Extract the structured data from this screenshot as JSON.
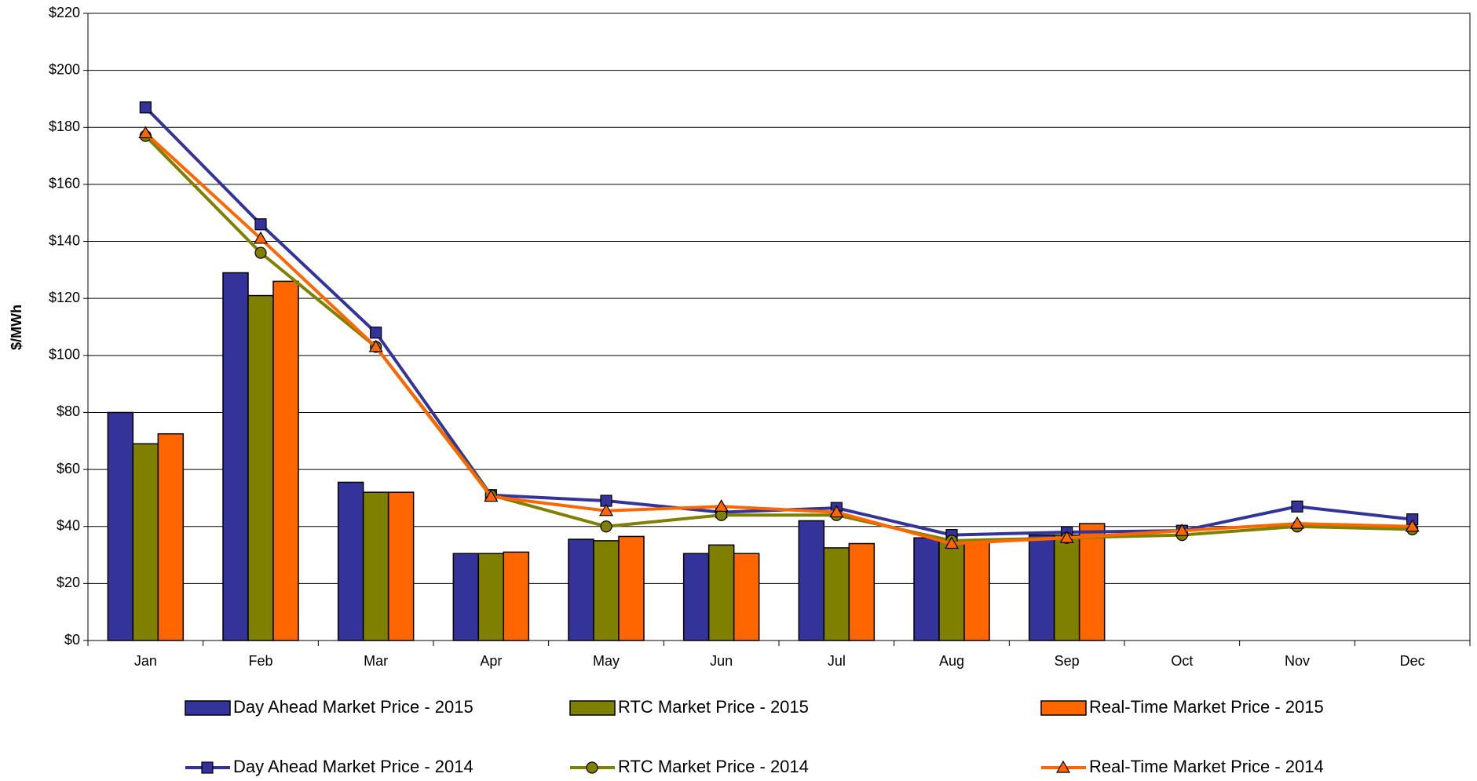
{
  "chart_data": {
    "type": "bar",
    "ylabel": "$/MWh",
    "categories": [
      "Jan",
      "Feb",
      "Mar",
      "Apr",
      "May",
      "Jun",
      "Jul",
      "Aug",
      "Sep",
      "Oct",
      "Nov",
      "Dec"
    ],
    "series": [
      {
        "name": "Day Ahead Market Price - 2015",
        "type": "bar",
        "color": "#333399",
        "values": [
          80,
          129,
          55.5,
          30.5,
          35.5,
          30.5,
          42,
          36,
          37,
          null,
          null,
          null
        ]
      },
      {
        "name": "RTC Market Price - 2015",
        "type": "bar",
        "color": "#808000",
        "values": [
          69,
          121,
          52,
          30.5,
          35,
          33.5,
          32.5,
          35,
          37,
          null,
          null,
          null
        ]
      },
      {
        "name": "Real-Time Market Price - 2015",
        "type": "bar",
        "color": "#ff6600",
        "values": [
          72.5,
          126,
          52,
          31,
          36.5,
          30.5,
          34,
          35,
          41,
          null,
          null,
          null
        ]
      },
      {
        "name": "Day Ahead Market Price - 2014",
        "type": "line",
        "marker": "square",
        "color": "#333399",
        "values": [
          187,
          146,
          108,
          51,
          49,
          45,
          46.5,
          37,
          38,
          38.5,
          47,
          42.5
        ]
      },
      {
        "name": "RTC Market Price - 2014",
        "type": "line",
        "marker": "circle",
        "color": "#808000",
        "values": [
          177,
          136,
          103,
          51,
          40,
          44,
          44,
          35,
          36,
          37,
          40,
          39
        ]
      },
      {
        "name": "Real-Time Market Price - 2014",
        "type": "line",
        "marker": "triangle",
        "color": "#ff6600",
        "values": [
          178,
          141,
          103,
          50.5,
          45.5,
          47,
          45,
          34,
          36,
          38.5,
          41,
          40
        ]
      }
    ],
    "ylim": [
      0,
      220
    ],
    "yticks": [
      {
        "value": 0,
        "label": "$0"
      },
      {
        "value": 20,
        "label": "$20"
      },
      {
        "value": 40,
        "label": "$40"
      },
      {
        "value": 60,
        "label": "$60"
      },
      {
        "value": 80,
        "label": "$80"
      },
      {
        "value": 100,
        "label": "$100"
      },
      {
        "value": 120,
        "label": "$120"
      },
      {
        "value": 140,
        "label": "$140"
      },
      {
        "value": 160,
        "label": "$160"
      },
      {
        "value": 180,
        "label": "$180"
      },
      {
        "value": 200,
        "label": "$200"
      },
      {
        "value": 220,
        "label": "$220"
      }
    ],
    "grid": true,
    "legend": "bottom"
  }
}
